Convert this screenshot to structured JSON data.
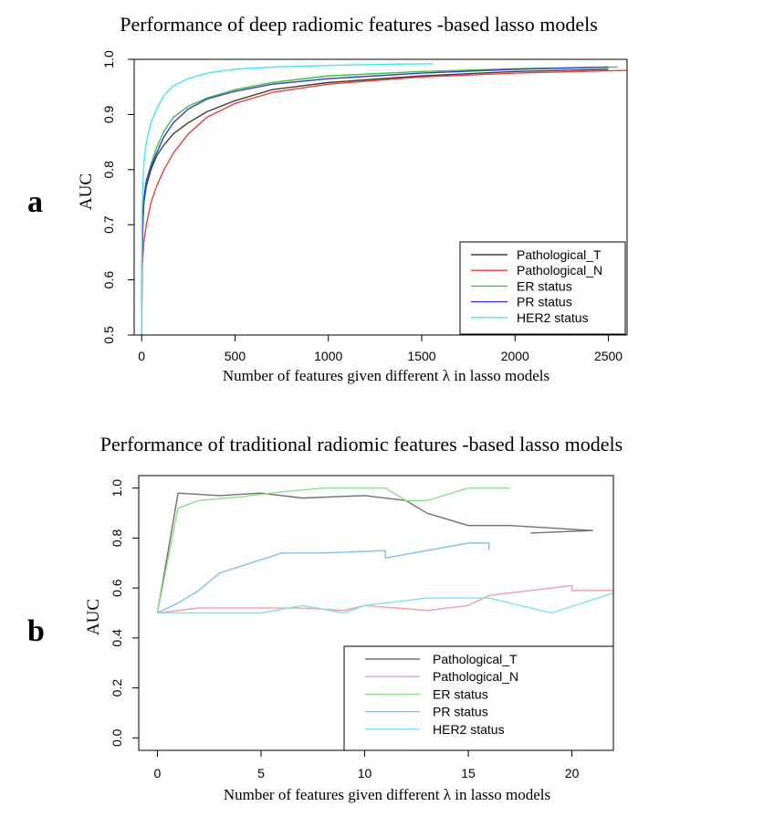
{
  "figure": {
    "panel_a_letter": "a",
    "panel_b_letter": "b"
  },
  "chart_data": [
    {
      "type": "line",
      "title": "Performance of deep radiomic features -based lasso models",
      "xlabel": "Number of features given different λ in lasso models",
      "ylabel": "AUC",
      "xlim": [
        -40,
        2600
      ],
      "ylim": [
        0.5,
        1.0
      ],
      "x_ticks": [
        0,
        500,
        1000,
        1500,
        2000,
        2500
      ],
      "y_ticks": [
        0.5,
        0.6,
        0.7,
        0.8,
        0.9,
        1.0
      ],
      "x_tick_labels": [
        "0",
        "500",
        "1000",
        "1500",
        "2000",
        "2500"
      ],
      "y_tick_labels": [
        "0.5",
        "0.6",
        "0.7",
        "0.8",
        "0.9",
        "1.0"
      ],
      "grid": false,
      "legend_position": "bottom-right",
      "series": [
        {
          "name": "Pathological_T",
          "color": "#404040",
          "x": [
            0,
            2,
            6,
            12,
            25,
            50,
            80,
            120,
            170,
            250,
            350,
            500,
            700,
            1000,
            1500,
            2000,
            2500
          ],
          "y": [
            0.5,
            0.63,
            0.7,
            0.74,
            0.77,
            0.8,
            0.825,
            0.845,
            0.865,
            0.885,
            0.905,
            0.925,
            0.945,
            0.958,
            0.97,
            0.978,
            0.982
          ]
        },
        {
          "name": "Pathological_N",
          "color": "#e8403a",
          "x": [
            0,
            2,
            6,
            12,
            25,
            50,
            80,
            120,
            170,
            250,
            350,
            500,
            700,
            1000,
            1500,
            2000,
            2600
          ],
          "y": [
            0.5,
            0.62,
            0.64,
            0.67,
            0.7,
            0.74,
            0.77,
            0.8,
            0.83,
            0.865,
            0.895,
            0.92,
            0.94,
            0.955,
            0.968,
            0.975,
            0.98
          ]
        },
        {
          "name": "ER status",
          "color": "#3cc43c",
          "x": [
            0,
            2,
            6,
            12,
            25,
            50,
            80,
            120,
            170,
            250,
            350,
            500,
            700,
            1000,
            1500,
            2000,
            2550
          ],
          "y": [
            0.5,
            0.65,
            0.71,
            0.75,
            0.78,
            0.81,
            0.84,
            0.87,
            0.895,
            0.915,
            0.93,
            0.945,
            0.958,
            0.97,
            0.978,
            0.983,
            0.986
          ]
        },
        {
          "name": "PR status",
          "color": "#3a3ad0",
          "x": [
            0,
            2,
            6,
            12,
            25,
            50,
            80,
            120,
            170,
            250,
            350,
            500,
            700,
            1000,
            1500,
            2000,
            2500
          ],
          "y": [
            0.5,
            0.64,
            0.7,
            0.745,
            0.78,
            0.805,
            0.83,
            0.86,
            0.885,
            0.91,
            0.928,
            0.942,
            0.955,
            0.965,
            0.975,
            0.982,
            0.986
          ]
        },
        {
          "name": "HER2 status",
          "color": "#40e8f0",
          "x": [
            0,
            2,
            6,
            12,
            25,
            50,
            80,
            120,
            170,
            250,
            350,
            500,
            700,
            1000,
            1300,
            1560
          ],
          "y": [
            0.5,
            0.72,
            0.77,
            0.81,
            0.85,
            0.885,
            0.91,
            0.935,
            0.952,
            0.965,
            0.975,
            0.982,
            0.986,
            0.989,
            0.991,
            0.992
          ]
        }
      ]
    },
    {
      "type": "line",
      "title": "Performance of traditional radiomic features -based lasso models",
      "xlabel": "Number of features given different λ in lasso models",
      "ylabel": "AUC",
      "xlim": [
        -0.9,
        22
      ],
      "ylim": [
        -0.05,
        1.05
      ],
      "x_ticks": [
        0,
        5,
        10,
        15,
        20
      ],
      "y_ticks": [
        0.0,
        0.2,
        0.4,
        0.6,
        0.8,
        1.0
      ],
      "x_tick_labels": [
        "0",
        "5",
        "10",
        "15",
        "20"
      ],
      "y_tick_labels": [
        "0.0",
        "0.2",
        "0.4",
        "0.6",
        "0.8",
        "1.0"
      ],
      "grid": false,
      "legend_position": "bottom-right",
      "series": [
        {
          "name": "Pathological_T",
          "color": "#707070",
          "x": [
            0,
            1,
            3,
            5,
            7,
            10,
            12,
            13,
            15,
            17,
            19,
            21,
            18
          ],
          "y": [
            0.5,
            0.98,
            0.97,
            0.98,
            0.96,
            0.97,
            0.95,
            0.9,
            0.85,
            0.85,
            0.84,
            0.83,
            0.82
          ]
        },
        {
          "name": "Pathological_N",
          "color": "#f0a0a8",
          "x": [
            0,
            2,
            5,
            7,
            9,
            10,
            13,
            15,
            16,
            20,
            20,
            22
          ],
          "y": [
            0.5,
            0.52,
            0.52,
            0.52,
            0.51,
            0.53,
            0.51,
            0.53,
            0.57,
            0.61,
            0.59,
            0.59
          ]
        },
        {
          "name": "ER status",
          "color": "#90dc90",
          "x": [
            0,
            1,
            2,
            4,
            6,
            8,
            9,
            10,
            11,
            12,
            13,
            15,
            17
          ],
          "y": [
            0.5,
            0.92,
            0.95,
            0.965,
            0.985,
            1.0,
            1.0,
            1.0,
            1.0,
            0.95,
            0.95,
            1.0,
            1.0
          ]
        },
        {
          "name": "PR status",
          "color": "#80c0f0",
          "x": [
            0,
            1,
            2,
            3,
            6,
            8,
            11,
            11,
            15,
            16,
            16
          ],
          "y": [
            0.5,
            0.54,
            0.59,
            0.66,
            0.74,
            0.74,
            0.75,
            0.72,
            0.78,
            0.78,
            0.75
          ]
        },
        {
          "name": "HER2 status",
          "color": "#7ae4ec",
          "x": [
            0,
            2,
            5,
            7,
            9,
            10,
            13,
            15,
            16,
            19,
            22
          ],
          "y": [
            0.5,
            0.5,
            0.5,
            0.53,
            0.5,
            0.53,
            0.56,
            0.56,
            0.56,
            0.5,
            0.58
          ]
        }
      ]
    }
  ]
}
